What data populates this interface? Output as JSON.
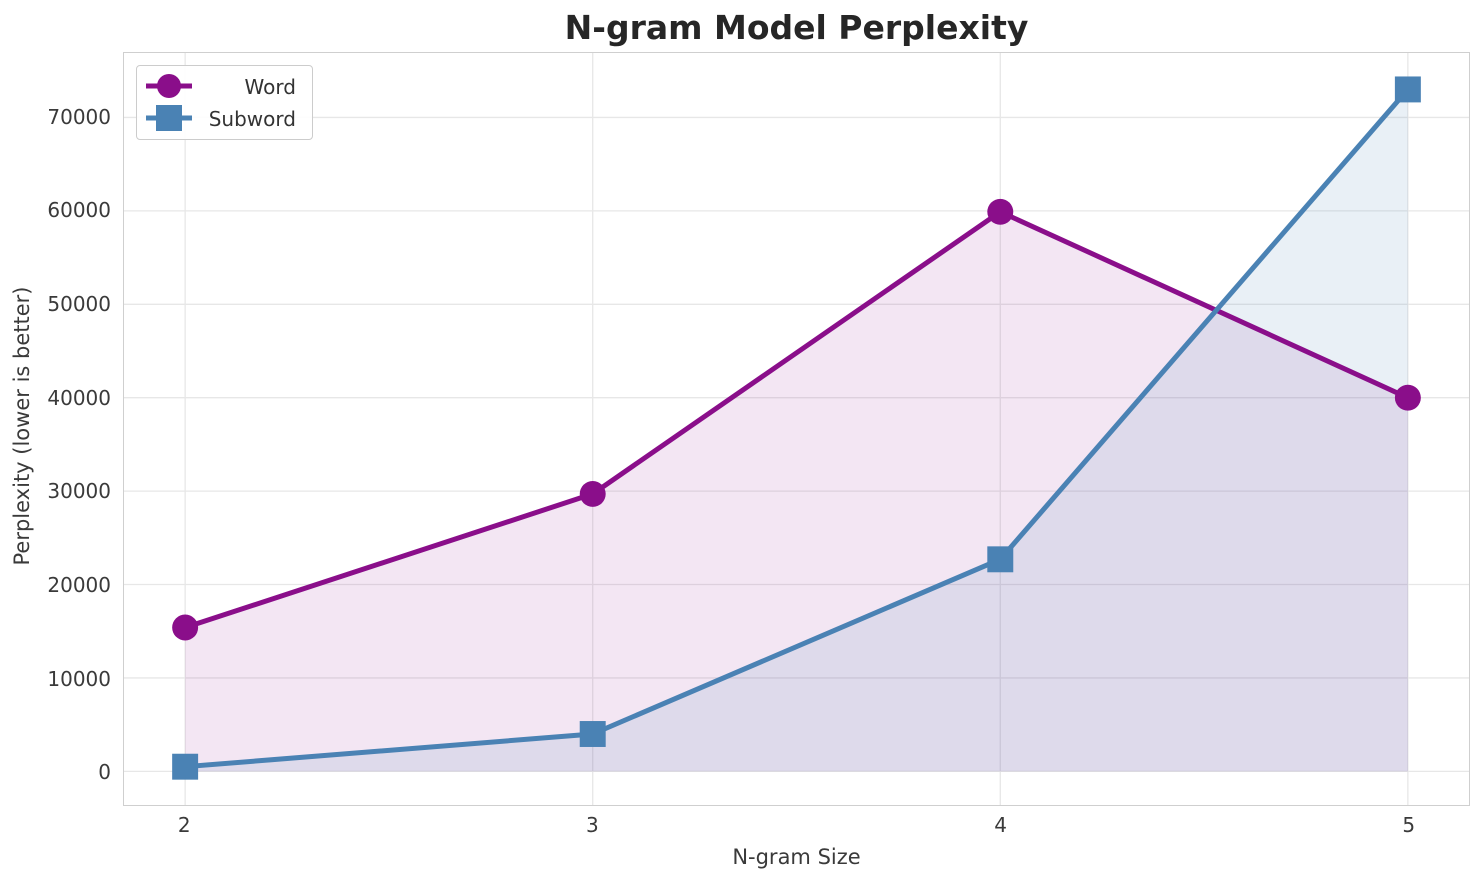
{
  "chart_data": {
    "type": "line",
    "title": "N-gram Model Perplexity",
    "xlabel": "N-gram Size",
    "ylabel": "Perplexity (lower is better)",
    "x": [
      2,
      3,
      4,
      5
    ],
    "series": [
      {
        "name": "Word",
        "color": "#8a0e8a",
        "marker": "circle",
        "values": [
          15400,
          29700,
          59900,
          40000
        ],
        "fill_opacity": 0.1
      },
      {
        "name": "Subword",
        "color": "#4a82b4",
        "marker": "square",
        "values": [
          500,
          4000,
          22700,
          73000
        ],
        "fill_opacity": 0.12
      }
    ],
    "xticks": [
      "2",
      "3",
      "4",
      "5"
    ],
    "xtick_values": [
      2,
      3,
      4,
      5
    ],
    "yticks": [
      "0",
      "10000",
      "20000",
      "30000",
      "40000",
      "50000",
      "60000",
      "70000"
    ],
    "ytick_values": [
      0,
      10000,
      20000,
      30000,
      40000,
      50000,
      60000,
      70000
    ],
    "xlim": [
      1.85,
      5.15
    ],
    "ylim": [
      -3600,
      76900
    ],
    "grid": true,
    "area_fill": true,
    "fill_baseline": 0,
    "legend_position": "upper left"
  },
  "colors": {
    "grid": "#e7e7e7",
    "spine": "#cfcfcf",
    "tick_text": "#3a3a3a",
    "title_text": "#262626",
    "legend_border": "#cccccc",
    "background": "#ffffff"
  },
  "style": {
    "line_width": 5,
    "circle_radius": 13,
    "square_size": 26
  }
}
